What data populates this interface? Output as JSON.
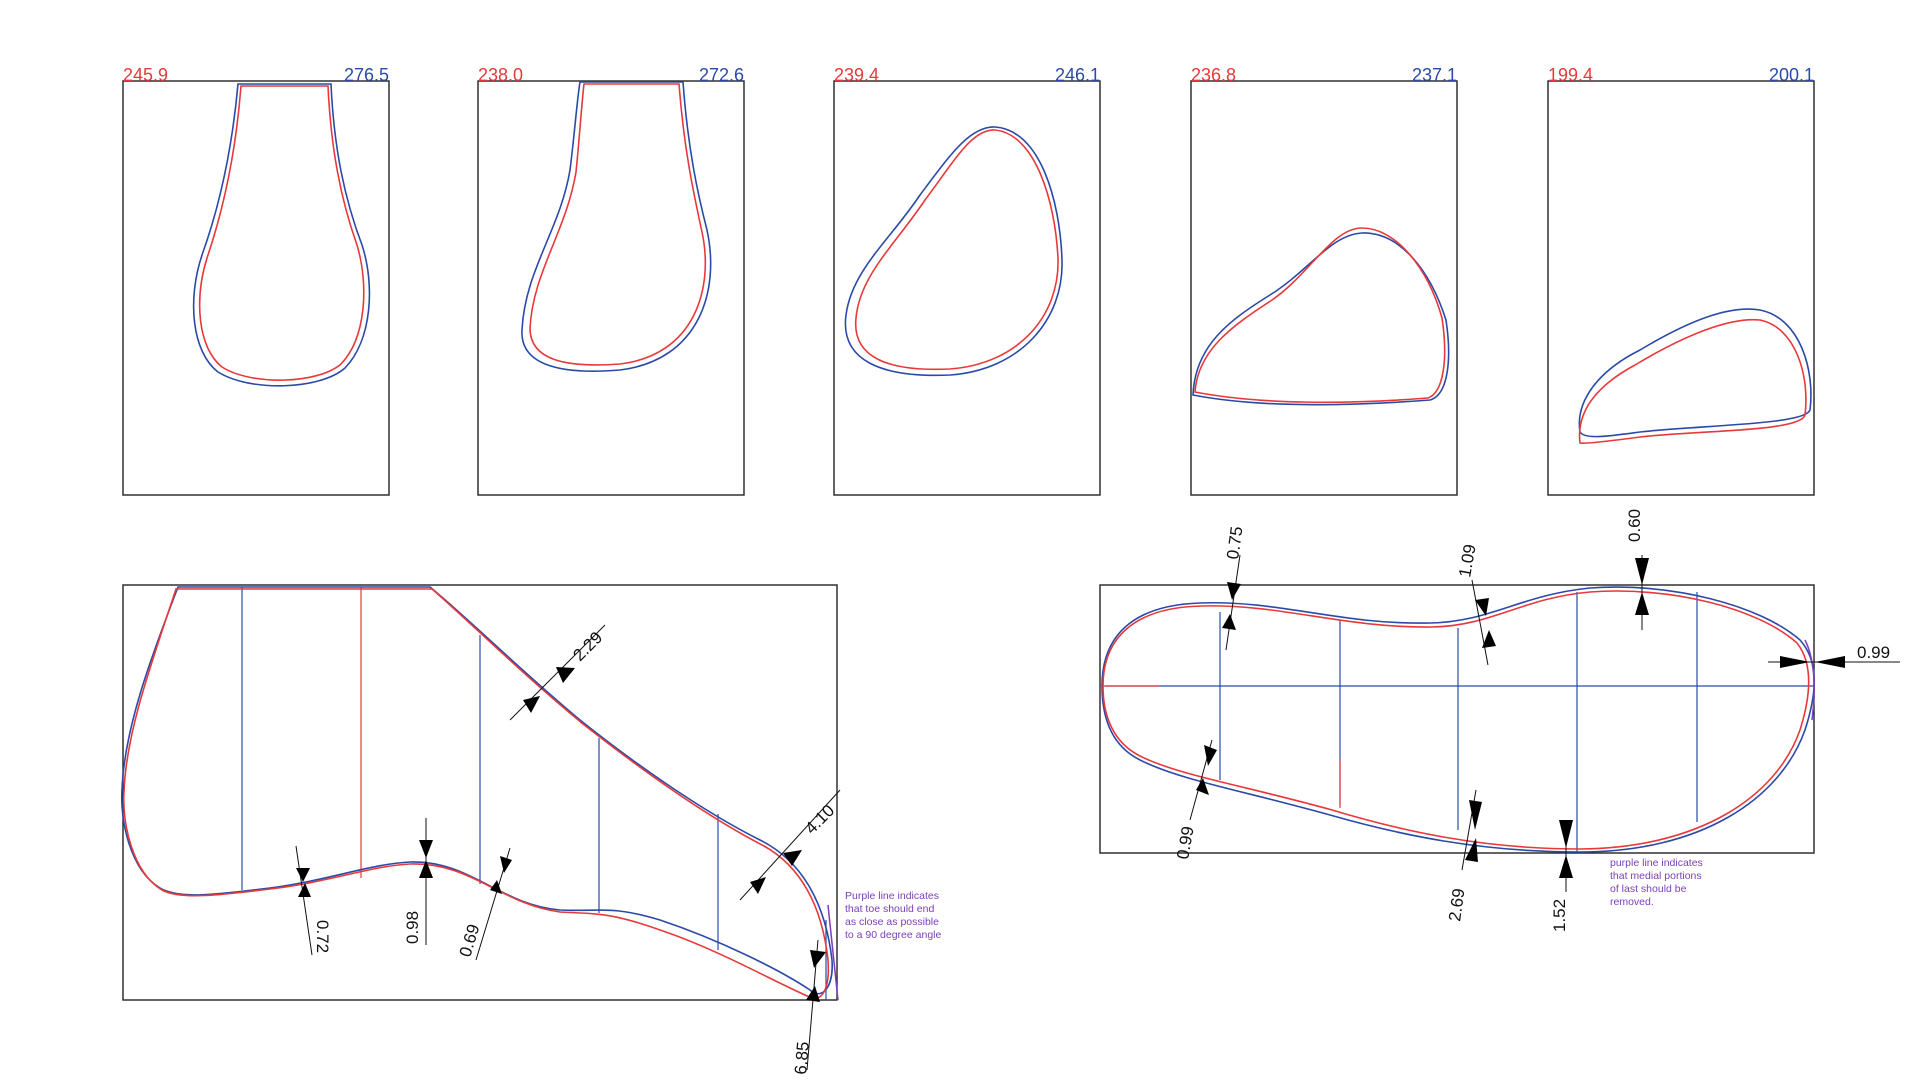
{
  "cross_sections": [
    {
      "red_value": "245.9",
      "blue_value": "276.5"
    },
    {
      "red_value": "238.0",
      "blue_value": "272.6"
    },
    {
      "red_value": "239.4",
      "blue_value": "246.1"
    },
    {
      "red_value": "236.8",
      "blue_value": "237.1"
    },
    {
      "red_value": "199.4",
      "blue_value": "200.1"
    }
  ],
  "side_view": {
    "dimensions": [
      "2.29",
      "4.10",
      "0.72",
      "0.98",
      "0.69",
      "6.85"
    ],
    "note": [
      "Purple line indicates",
      "that toe should end",
      "as close as possible",
      "to a 90 degree angle"
    ]
  },
  "bottom_view": {
    "dimensions": [
      "0.75",
      "1.09",
      "0.60",
      "0.99",
      "0.99",
      "2.69",
      "1.52"
    ],
    "note": [
      "purple line indicates",
      "that medial portions",
      "of last should be",
      "removed."
    ]
  },
  "colors": {
    "red": "#e8393a",
    "blue": "#2b4aa8",
    "purple": "#7b3fb8"
  }
}
